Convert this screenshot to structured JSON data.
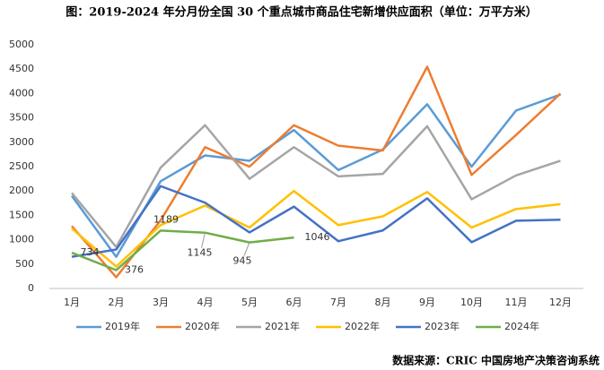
{
  "chart_data": {
    "type": "line",
    "title": "图：2019-2024 年分月份全国 30 个重点城市商品住宅新增供应面积（单位：万平方米）",
    "source": "数据来源：CRIC 中国房地产决策咨询系统",
    "categories": [
      "1月",
      "2月",
      "3月",
      "4月",
      "5月",
      "6月",
      "7月",
      "8月",
      "9月",
      "10月",
      "11月",
      "12月"
    ],
    "ylim": [
      0,
      5000
    ],
    "yticks": [
      0,
      500,
      1000,
      1500,
      2000,
      2500,
      3000,
      3500,
      4000,
      4500,
      5000
    ],
    "grid": false,
    "legend": "bottom",
    "series": [
      {
        "name": "2019年",
        "color": "#5b9bd5",
        "values": [
          1900,
          650,
          2200,
          2730,
          2620,
          3250,
          2430,
          2850,
          3780,
          2500,
          3650,
          3980
        ]
      },
      {
        "name": "2020年",
        "color": "#ed7d31",
        "values": [
          1280,
          230,
          1400,
          2900,
          2500,
          3350,
          2930,
          2830,
          4550,
          2330,
          3150,
          4000
        ]
      },
      {
        "name": "2021年",
        "color": "#a5a5a5",
        "values": [
          1960,
          850,
          2480,
          3350,
          2250,
          2900,
          2300,
          2350,
          3330,
          1830,
          2320,
          2620
        ]
      },
      {
        "name": "2022年",
        "color": "#ffc000",
        "values": [
          1230,
          450,
          1300,
          1700,
          1250,
          2000,
          1300,
          1480,
          1980,
          1250,
          1630,
          1730
        ]
      },
      {
        "name": "2023年",
        "color": "#4472c4",
        "values": [
          650,
          800,
          2100,
          1760,
          1150,
          1680,
          970,
          1190,
          1850,
          950,
          1390,
          1410
        ]
      },
      {
        "name": "2024年",
        "color": "#70ad47",
        "values": [
          734,
          376,
          1189,
          1145,
          945,
          1046,
          null,
          null,
          null,
          null,
          null,
          null
        ],
        "labels": true
      }
    ]
  }
}
